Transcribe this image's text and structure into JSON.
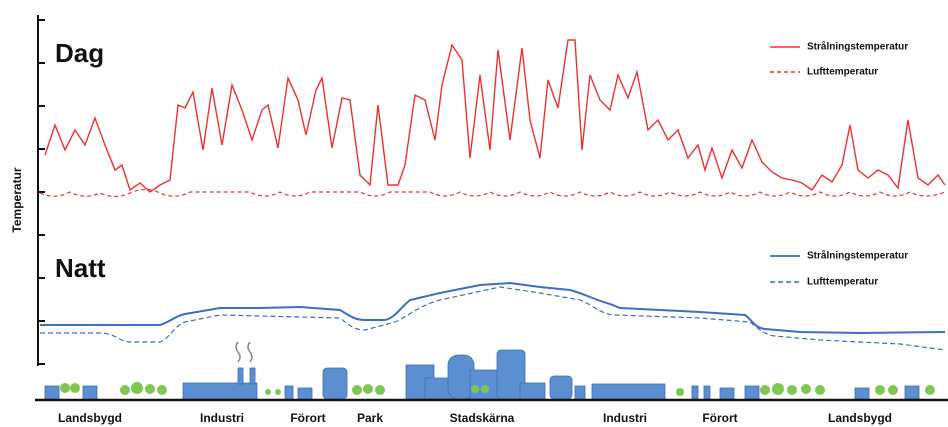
{
  "axis_label": "Temperatur",
  "day": {
    "title": "Dag",
    "legend": [
      "Strålningstemperatur",
      "Lufttemperatur"
    ]
  },
  "night": {
    "title": "Natt",
    "legend": [
      "Strålningstemperatur",
      "Lufttemperatur"
    ]
  },
  "zones": [
    "Landsbygd",
    "Industri",
    "Förort",
    "Park",
    "Stadskärna",
    "Industri",
    "Förort",
    "Landsbygd"
  ]
}
